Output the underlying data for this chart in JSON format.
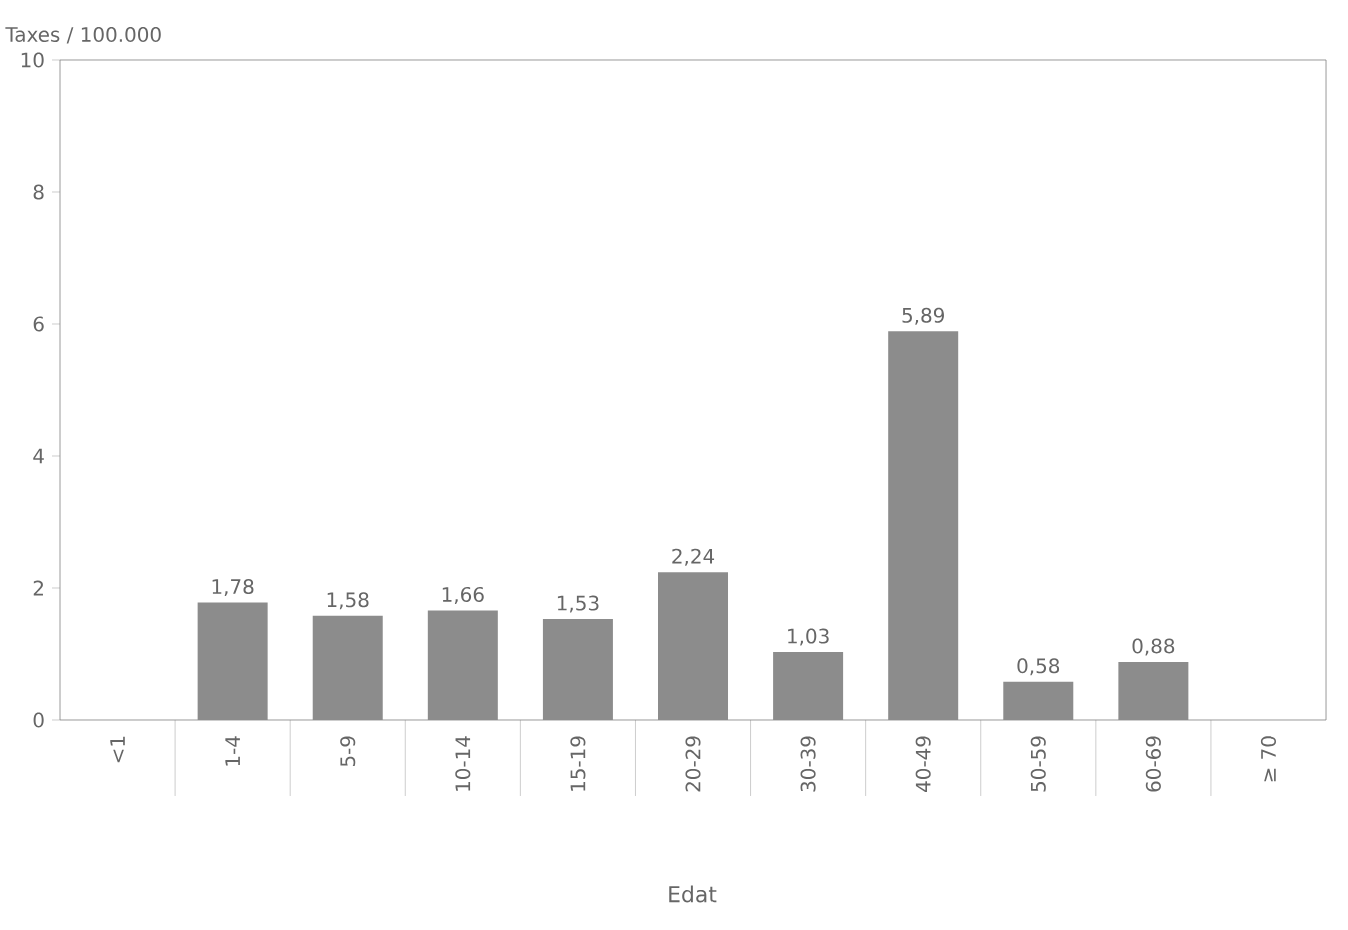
{
  "chart_data": {
    "type": "bar",
    "ylabel": "Taxes / 100.000",
    "xlabel": "Edat",
    "categories": [
      "<1",
      "1-4",
      "5-9",
      "10-14",
      "15-19",
      "20-29",
      "30-39",
      "40-49",
      "50-59",
      "60-69",
      "≥ 70"
    ],
    "values": [
      null,
      1.78,
      1.58,
      1.66,
      1.53,
      2.24,
      1.03,
      5.89,
      0.58,
      0.88,
      null
    ],
    "value_labels": [
      null,
      "1,78",
      "1,58",
      "1,66",
      "1,53",
      "2,24",
      "1,03",
      "5,89",
      "0,58",
      "0,88",
      null
    ],
    "color": "#8c8c8c",
    "ylim": [
      0,
      10
    ],
    "yticks": [
      0,
      2,
      4,
      6,
      8,
      10
    ],
    "grid": false
  }
}
